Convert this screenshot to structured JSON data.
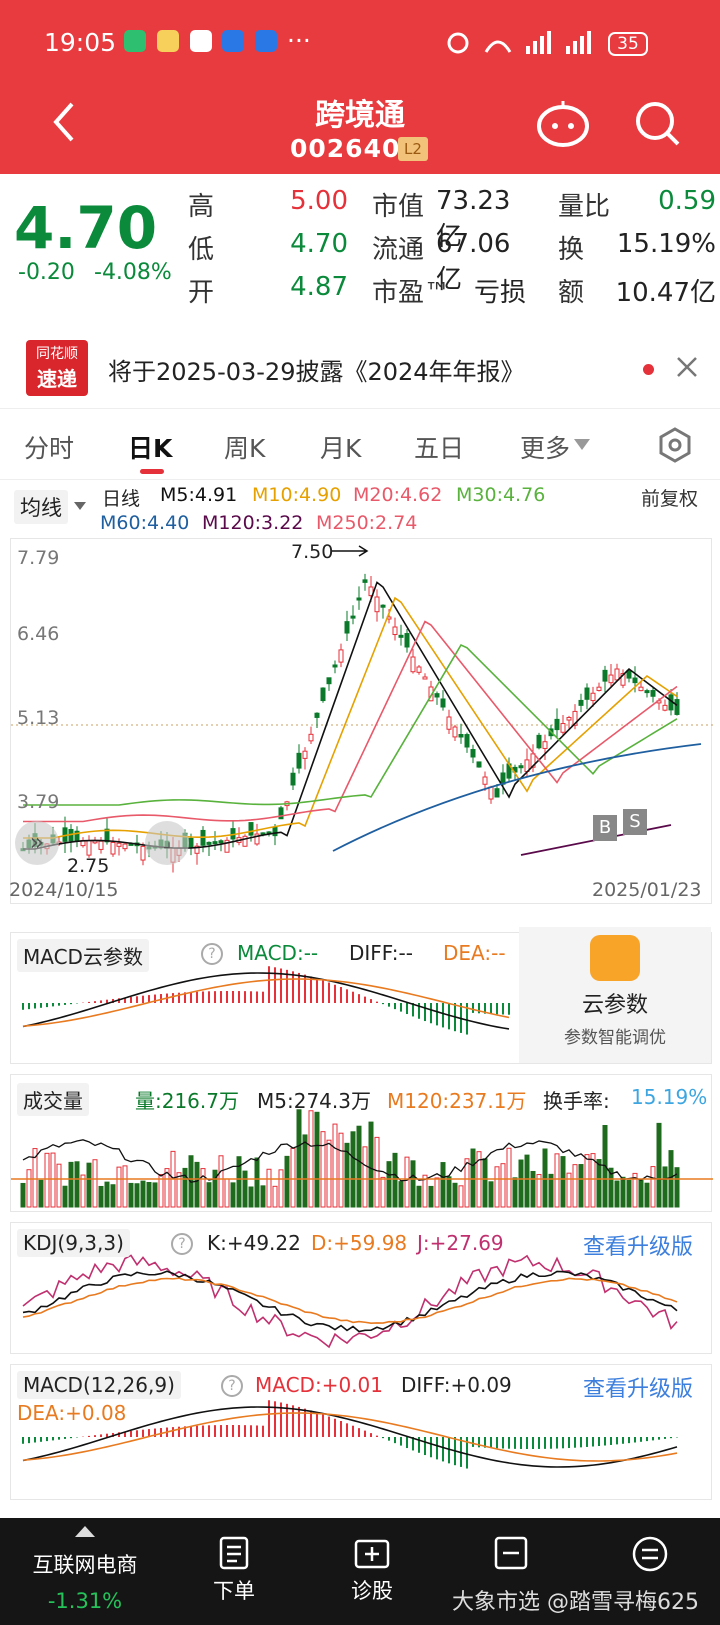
{
  "status": {
    "time": "19:05",
    "dots": "···",
    "battery": "35"
  },
  "header": {
    "title": "跨境通",
    "code": "002640",
    "level": "L2"
  },
  "quote": {
    "price": "4.70",
    "change": "-0.20",
    "change_pct": "-4.08%",
    "rows": [
      {
        "l1": "高",
        "v1": "5.00",
        "l2": "市值",
        "v2": "73.23亿",
        "l3": "量比",
        "v3": "0.59"
      },
      {
        "l1": "低",
        "v1": "4.70",
        "l2": "流通",
        "v2": "67.06亿",
        "l3": "换",
        "v3": "15.19%"
      },
      {
        "l1": "开",
        "v1": "4.87",
        "l2": "市盈™",
        "v2": "亏损",
        "l3": "额",
        "v3": "10.47亿"
      }
    ]
  },
  "notice": {
    "logo_top": "同花顺",
    "logo_bottom": "速递",
    "text": "将于2025-03-29披露《2024年年报》"
  },
  "tabs": [
    "分时",
    "日K",
    "周K",
    "月K",
    "五日",
    "更多"
  ],
  "kchart": {
    "ma_select": "均线",
    "period": "日线",
    "ma5": "M5:4.91",
    "ma10": "M10:4.90",
    "ma20": "M20:4.62",
    "ma30": "M30:4.76",
    "ma60": "M60:4.40",
    "ma120": "M120:3.22",
    "ma250": "M250:2.74",
    "adjust": "前复权",
    "y_ticks": [
      "7.79",
      "6.46",
      "5.13",
      "3.79"
    ],
    "high_mark": "7.50",
    "low_mark": "2.75",
    "date_start": "2024/10/15",
    "date_end": "2025/01/23",
    "buy": "B",
    "sell": "S"
  },
  "macd_cloud": {
    "title": "MACD云参数",
    "macd": "MACD:--",
    "diff": "DIFF:--",
    "dea": "DEA:--",
    "promo_title": "云参数",
    "promo_sub": "参数智能调优"
  },
  "volume": {
    "title": "成交量",
    "vol": "量:216.7万",
    "m5": "M5:274.3万",
    "m120": "M120:237.1万",
    "turnover_label": "换手率:",
    "turnover": "15.19%"
  },
  "kdj": {
    "title": "KDJ(9,3,3)",
    "k": "K:+49.22",
    "d": "D:+59.98",
    "j": "J:+27.69",
    "upgrade": "查看升级版"
  },
  "macd": {
    "title": "MACD(12,26,9)",
    "macd": "MACD:+0.01",
    "diff": "DIFF:+0.09",
    "dea": "DEA:+0.08",
    "upgrade": "查看升级版"
  },
  "bottom": {
    "sector": "互联网电商",
    "sector_pct": "-1.31%",
    "order": "下单",
    "diagnose": "诊股",
    "watermark": "大象市选 @踏雪寻梅625"
  },
  "colors": {
    "brand_red": "#e83b3f",
    "up": "#e5323a",
    "down": "#0a8a3a",
    "ma5": "#111111",
    "ma10": "#e6a100",
    "ma20": "#e8596a",
    "ma30": "#58b23c",
    "ma60": "#1f5fa0",
    "ma120": "#5a0a4a"
  }
}
